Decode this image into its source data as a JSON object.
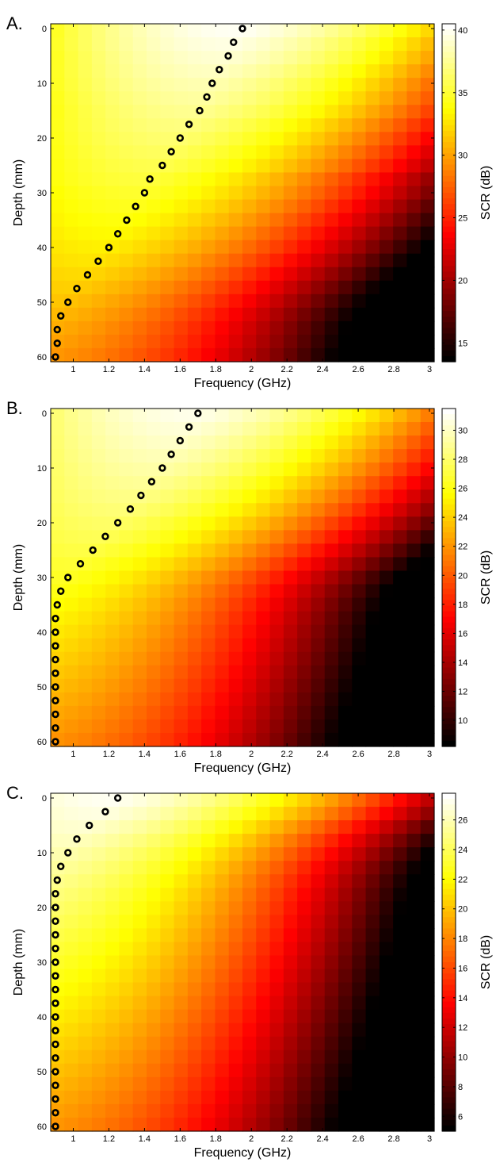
{
  "chart_data": [
    {
      "type": "heatmap",
      "panel_label": "A.",
      "xlabel": "Frequency (GHz)",
      "ylabel": "Depth (mm)",
      "colorbar_label": "SCR (dB)",
      "colormap": "hot",
      "xlim": [
        0.9,
        3.0
      ],
      "ylim": [
        0,
        60
      ],
      "y_reversed": true,
      "x_ticks": [
        1,
        1.2,
        1.4,
        1.6,
        1.8,
        2,
        2.2,
        2.4,
        2.6,
        2.8,
        3
      ],
      "x_tick_labels": [
        "1",
        "1.2",
        "1.4",
        "1.6",
        "1.8",
        "2",
        "2.2",
        "2.4",
        "2.6",
        "2.8",
        "3"
      ],
      "y_ticks": [
        0,
        10,
        20,
        30,
        40,
        50,
        60
      ],
      "y_tick_labels": [
        "0",
        "10",
        "20",
        "30",
        "40",
        "50",
        "60"
      ],
      "clim": [
        13.5,
        40.5
      ],
      "colorbar_ticks": [
        15,
        20,
        25,
        30,
        35,
        40
      ],
      "colorbar_tick_labels": [
        "15",
        "20",
        "25",
        "30",
        "35",
        "40"
      ],
      "field": {
        "max_db": 40.2,
        "min_db": 13.5
      },
      "optimal_frequency_ghz": [
        1.95,
        1.9,
        1.87,
        1.82,
        1.78,
        1.75,
        1.71,
        1.65,
        1.6,
        1.55,
        1.5,
        1.43,
        1.4,
        1.35,
        1.3,
        1.25,
        1.2,
        1.14,
        1.08,
        1.02,
        0.97,
        0.93,
        0.91,
        0.91,
        0.9
      ]
    },
    {
      "type": "heatmap",
      "panel_label": "B.",
      "xlabel": "Frequency (GHz)",
      "ylabel": "Depth (mm)",
      "colorbar_label": "SCR (dB)",
      "colormap": "hot",
      "xlim": [
        0.9,
        3.0
      ],
      "ylim": [
        0,
        60
      ],
      "y_reversed": true,
      "x_ticks": [
        1,
        1.2,
        1.4,
        1.6,
        1.8,
        2,
        2.2,
        2.4,
        2.6,
        2.8,
        3
      ],
      "x_tick_labels": [
        "1",
        "1.2",
        "1.4",
        "1.6",
        "1.8",
        "2",
        "2.2",
        "2.4",
        "2.6",
        "2.8",
        "3"
      ],
      "y_ticks": [
        0,
        10,
        20,
        30,
        40,
        50,
        60
      ],
      "y_tick_labels": [
        "0",
        "10",
        "20",
        "30",
        "40",
        "50",
        "60"
      ],
      "clim": [
        8.2,
        31.5
      ],
      "colorbar_ticks": [
        10,
        12,
        14,
        16,
        18,
        20,
        22,
        24,
        26,
        28,
        30
      ],
      "colorbar_tick_labels": [
        "10",
        "12",
        "14",
        "16",
        "18",
        "20",
        "22",
        "24",
        "26",
        "28",
        "30"
      ],
      "field": {
        "max_db": 31.0,
        "min_db": 8.2
      },
      "optimal_frequency_ghz": [
        1.7,
        1.65,
        1.6,
        1.55,
        1.5,
        1.44,
        1.38,
        1.32,
        1.25,
        1.18,
        1.11,
        1.04,
        0.97,
        0.93,
        0.91,
        0.9,
        0.9,
        0.9,
        0.9,
        0.9,
        0.9,
        0.9,
        0.9,
        0.9,
        0.9
      ]
    },
    {
      "type": "heatmap",
      "panel_label": "C.",
      "xlabel": "Frequency (GHz)",
      "ylabel": "Depth (mm)",
      "colorbar_label": "SCR (dB)",
      "colormap": "hot",
      "xlim": [
        0.9,
        3.0
      ],
      "ylim": [
        0,
        60
      ],
      "y_reversed": true,
      "x_ticks": [
        1,
        1.2,
        1.4,
        1.6,
        1.8,
        2,
        2.2,
        2.4,
        2.6,
        2.8,
        3
      ],
      "x_tick_labels": [
        "1",
        "1.2",
        "1.4",
        "1.6",
        "1.8",
        "2",
        "2.2",
        "2.4",
        "2.6",
        "2.8",
        "3"
      ],
      "y_ticks": [
        0,
        10,
        20,
        30,
        40,
        50,
        60
      ],
      "y_tick_labels": [
        "0",
        "10",
        "20",
        "30",
        "40",
        "50",
        "60"
      ],
      "clim": [
        5.0,
        27.8
      ],
      "colorbar_ticks": [
        6,
        8,
        10,
        12,
        14,
        16,
        18,
        20,
        22,
        24,
        26
      ],
      "colorbar_tick_labels": [
        "6",
        "8",
        "10",
        "12",
        "14",
        "16",
        "18",
        "20",
        "22",
        "24",
        "26"
      ],
      "field": {
        "max_db": 27.5,
        "min_db": 5.0
      },
      "optimal_frequency_ghz": [
        1.25,
        1.18,
        1.09,
        1.02,
        0.97,
        0.93,
        0.91,
        0.9,
        0.9,
        0.9,
        0.9,
        0.9,
        0.9,
        0.9,
        0.9,
        0.9,
        0.9,
        0.9,
        0.9,
        0.9,
        0.9,
        0.9,
        0.9,
        0.9,
        0.9
      ]
    }
  ]
}
